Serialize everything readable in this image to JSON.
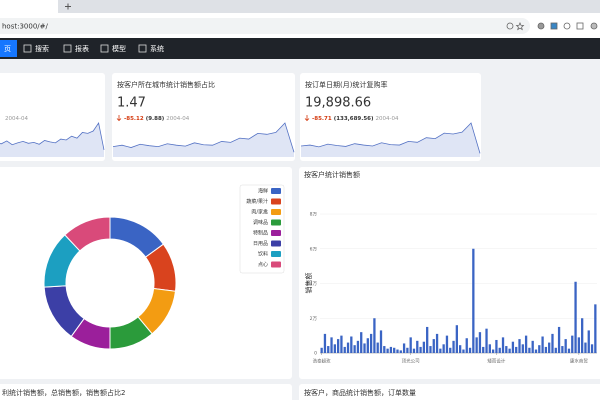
{
  "browser": {
    "url": "host:3000/#/"
  },
  "nav": {
    "items": [
      "页",
      "搜索",
      "报表",
      "模型",
      "系统"
    ]
  },
  "cards": [
    {
      "date": "2004-04",
      "spark": [
        30,
        28,
        34,
        26,
        30,
        33,
        29,
        31,
        27,
        35,
        32,
        30,
        38,
        36,
        44,
        40,
        52,
        50,
        55,
        72,
        15
      ]
    },
    {
      "title": "按客户所在城市统计销售额占比",
      "value": "1.47",
      "change": "-85.12",
      "base": "(9.88)",
      "date": "2004-04",
      "spark": [
        22,
        25,
        20,
        27,
        24,
        22,
        28,
        25,
        23,
        30,
        26,
        25,
        33,
        31,
        40,
        38,
        50,
        48,
        52,
        72,
        10
      ]
    },
    {
      "title": "按订单日期(月)统计复购率",
      "value": "19,898.66",
      "change": "-85.71",
      "base": "(133,689.56)",
      "date": "2004-04",
      "spark": [
        24,
        26,
        22,
        28,
        25,
        23,
        29,
        26,
        24,
        31,
        27,
        26,
        34,
        32,
        42,
        40,
        52,
        50,
        54,
        74,
        8
      ]
    }
  ],
  "donut": {
    "categories": [
      "海鲜",
      "蔬菜/果汁",
      "肉/家禽",
      "调味品",
      "特制品",
      "日用品",
      "饮料",
      "点心"
    ],
    "colors": [
      "#3a64c4",
      "#d9431e",
      "#f39c12",
      "#2b9b3b",
      "#9b1f9b",
      "#3c3fa6",
      "#1c9fc1",
      "#d94a7a"
    ],
    "values": [
      15,
      12,
      12,
      11,
      10,
      14,
      14,
      12
    ]
  },
  "sales_by_customer": {
    "title": "按客户统计销售额",
    "ylabel": "销售额",
    "color": "#3a64c4",
    "ylim": [
      0,
      80000
    ],
    "yticks": [
      0,
      {
        "value": 20000,
        "label": "2万"
      },
      {
        "value": 40000,
        "label": "4万"
      },
      {
        "value": 60000,
        "label": "6万"
      },
      {
        "value": 80000,
        "label": "8万"
      }
    ],
    "categories": [
      "浩泰超玫",
      null,
      null,
      null,
      null,
      null,
      null,
      null,
      null,
      null,
      null,
      null,
      null,
      null,
      null,
      null,
      null,
      null,
      null,
      null,
      null,
      null,
      null,
      null,
      null,
      null,
      null,
      "顶光公司",
      null,
      null,
      null,
      null,
      null,
      null,
      null,
      null,
      null,
      null,
      null,
      null,
      null,
      null,
      null,
      null,
      null,
      null,
      null,
      null,
      null,
      null,
      null,
      null,
      null,
      "矮而设计",
      null,
      null,
      null,
      null,
      null,
      null,
      null,
      null,
      null,
      null,
      null,
      null,
      null,
      null,
      null,
      null,
      null,
      null,
      null,
      null,
      null,
      null,
      null,
      null,
      "康水商贸",
      null,
      null,
      null,
      null,
      null
    ],
    "values": [
      3000,
      11000,
      4000,
      9000,
      5000,
      8000,
      10000,
      3500,
      6000,
      9500,
      4500,
      7000,
      12000,
      5500,
      8500,
      11000,
      20000,
      6000,
      13000,
      4000,
      2500,
      3500,
      3000,
      2000,
      1500,
      5500,
      3000,
      9000,
      2500,
      7000,
      3500,
      6500,
      15000,
      4000,
      8000,
      11000,
      2500,
      5000,
      10000,
      3000,
      7000,
      16000,
      4500,
      2000,
      8500,
      3000,
      60000,
      9000,
      12000,
      3500,
      14000,
      5000,
      2000,
      7500,
      3000,
      9000,
      4000,
      2500,
      6500,
      3500,
      8000,
      5000,
      10000,
      3000,
      7000,
      2000,
      4500,
      9500,
      3500,
      6000,
      11000,
      3000,
      15000,
      4000,
      8000,
      2500,
      10000,
      41000,
      9000,
      20000,
      6000,
      13000,
      5000,
      28000
    ]
  },
  "bottom": {
    "left_title": "利统计销售额，总销售额，销售额占比2",
    "right_title": "按客户，商品统计销售额，订单数量"
  }
}
